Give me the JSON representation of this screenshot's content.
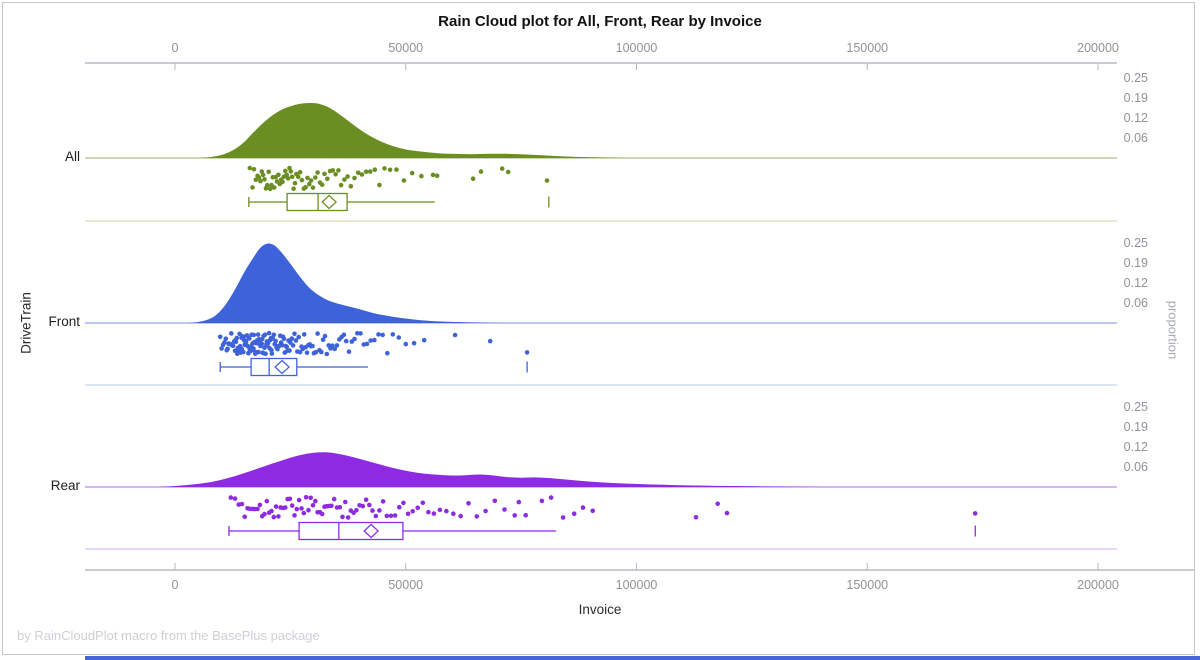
{
  "title": "Rain Cloud plot for All, Front, Rear by Invoice",
  "footer": "by RainCloudPlot macro from the BasePlus package",
  "chart_data": {
    "type": "raincloud",
    "title": "Rain Cloud plot for All, Front, Rear by Invoice",
    "xlabel": "Invoice",
    "ylabel": "DriveTrain",
    "ylabel_right": "proportion",
    "x_axis_range": [
      0,
      200000
    ],
    "x_ticks": [
      0,
      50000,
      100000,
      150000,
      200000
    ],
    "x_tick_labels": [
      "0",
      "50000",
      "100000",
      "150000",
      "200000"
    ],
    "proportion_ticks": [
      0.0625,
      0.125,
      0.1875,
      0.25
    ],
    "proportion_tick_labels": [
      "0.06",
      "0.12",
      "0.19",
      "0.25"
    ],
    "legend": "none",
    "grid": "off",
    "groups": [
      {
        "label": "All",
        "color": "#6B8E23",
        "density": [
          [
            5000,
            0
          ],
          [
            7000,
            0.002
          ],
          [
            9000,
            0.006
          ],
          [
            11000,
            0.014
          ],
          [
            13000,
            0.028
          ],
          [
            15000,
            0.05
          ],
          [
            17000,
            0.08
          ],
          [
            19000,
            0.108
          ],
          [
            21000,
            0.132
          ],
          [
            23000,
            0.15
          ],
          [
            25000,
            0.162
          ],
          [
            27000,
            0.169
          ],
          [
            29000,
            0.172
          ],
          [
            31000,
            0.17
          ],
          [
            33000,
            0.16
          ],
          [
            35000,
            0.143
          ],
          [
            37000,
            0.122
          ],
          [
            39000,
            0.1
          ],
          [
            41000,
            0.08
          ],
          [
            43000,
            0.063
          ],
          [
            45000,
            0.049
          ],
          [
            47000,
            0.038
          ],
          [
            49000,
            0.03
          ],
          [
            51000,
            0.024
          ],
          [
            54000,
            0.019
          ],
          [
            57000,
            0.015
          ],
          [
            60000,
            0.013
          ],
          [
            64000,
            0.012
          ],
          [
            68000,
            0.013
          ],
          [
            72000,
            0.013
          ],
          [
            76000,
            0.011
          ],
          [
            80000,
            0.008
          ],
          [
            84000,
            0.005
          ],
          [
            88000,
            0.003
          ],
          [
            93000,
            0.0015
          ],
          [
            98000,
            0
          ]
        ],
        "box": {
          "whisker_low": 16000,
          "q1": 24300,
          "median": 31000,
          "mean": 33400,
          "q3": 37300,
          "whisker_high": 56300,
          "outliers": [
            81000
          ]
        },
        "points": [
          16200,
          16800,
          17100,
          17500,
          17900,
          18200,
          18500,
          18800,
          19100,
          19400,
          19700,
          20000,
          20300,
          20600,
          20900,
          21200,
          21500,
          21800,
          22100,
          22400,
          22700,
          23000,
          23300,
          23600,
          23900,
          24200,
          24500,
          24800,
          25100,
          25400,
          25700,
          26000,
          26300,
          26700,
          27100,
          27500,
          27900,
          28300,
          28700,
          29100,
          29500,
          29900,
          30400,
          30900,
          31400,
          31900,
          32400,
          33000,
          33600,
          34200,
          34800,
          35400,
          36000,
          36700,
          37400,
          38100,
          38900,
          39700,
          40500,
          41400,
          42300,
          43300,
          44300,
          45400,
          46600,
          48000,
          49600,
          51400,
          53400,
          55900,
          56800,
          64600,
          66300,
          70900,
          72200,
          80600
        ]
      },
      {
        "label": "Front",
        "color": "#3E62D9",
        "density": [
          [
            3000,
            0
          ],
          [
            5000,
            0.003
          ],
          [
            7000,
            0.01
          ],
          [
            9000,
            0.026
          ],
          [
            11000,
            0.058
          ],
          [
            13000,
            0.105
          ],
          [
            15000,
            0.158
          ],
          [
            17000,
            0.205
          ],
          [
            18500,
            0.235
          ],
          [
            20000,
            0.248
          ],
          [
            21500,
            0.243
          ],
          [
            23000,
            0.222
          ],
          [
            25000,
            0.185
          ],
          [
            27000,
            0.146
          ],
          [
            29000,
            0.112
          ],
          [
            31000,
            0.088
          ],
          [
            33000,
            0.072
          ],
          [
            35000,
            0.062
          ],
          [
            37000,
            0.054
          ],
          [
            39000,
            0.047
          ],
          [
            41000,
            0.039
          ],
          [
            43000,
            0.031
          ],
          [
            45000,
            0.025
          ],
          [
            47000,
            0.02
          ],
          [
            50000,
            0.014
          ],
          [
            53000,
            0.009
          ],
          [
            56000,
            0.006
          ],
          [
            60000,
            0.0035
          ],
          [
            64000,
            0.002
          ],
          [
            68000,
            0.001
          ],
          [
            72000,
            0
          ]
        ],
        "box": {
          "whisker_low": 9800,
          "q1": 16500,
          "median": 20400,
          "mean": 23200,
          "q3": 26400,
          "whisker_high": 41800,
          "outliers": [
            76300
          ]
        },
        "points": [
          9800,
          10100,
          10400,
          10700,
          11000,
          11200,
          11400,
          11600,
          11800,
          12000,
          12200,
          12400,
          12600,
          12800,
          13000,
          13100,
          13200,
          13400,
          13500,
          13600,
          13800,
          13900,
          14000,
          14100,
          14200,
          14400,
          14500,
          14600,
          14800,
          14900,
          15000,
          15100,
          15200,
          15400,
          15500,
          15600,
          15800,
          15900,
          16000,
          16100,
          16200,
          16400,
          16500,
          16600,
          16800,
          16900,
          17000,
          17100,
          17200,
          17400,
          17500,
          17600,
          17800,
          17900,
          18000,
          18100,
          18200,
          18400,
          18500,
          18600,
          18800,
          18900,
          19000,
          19100,
          19200,
          19400,
          19500,
          19600,
          19800,
          19900,
          20000,
          20100,
          20200,
          20400,
          20500,
          20600,
          20800,
          20900,
          21000,
          21200,
          21400,
          21600,
          21800,
          22000,
          22200,
          22400,
          22600,
          22800,
          23000,
          23200,
          23400,
          23600,
          23800,
          24000,
          24200,
          24400,
          24600,
          24800,
          25000,
          25300,
          25600,
          25900,
          26200,
          26500,
          26800,
          27100,
          27400,
          27700,
          28000,
          28300,
          28600,
          28900,
          29200,
          29500,
          29800,
          30100,
          30500,
          30900,
          31300,
          31700,
          32100,
          32500,
          32900,
          33300,
          33700,
          34100,
          34600,
          35100,
          35600,
          36100,
          36600,
          37100,
          37700,
          38300,
          38900,
          39500,
          40200,
          40900,
          41600,
          42400,
          43200,
          44100,
          45000,
          46000,
          47200,
          48500,
          50000,
          51800,
          54000,
          60700,
          68300,
          76300
        ]
      },
      {
        "label": "Rear",
        "color": "#8E2BE2",
        "density": [
          [
            -4000,
            0
          ],
          [
            0,
            0.003
          ],
          [
            4000,
            0.008
          ],
          [
            8000,
            0.016
          ],
          [
            12000,
            0.03
          ],
          [
            16000,
            0.048
          ],
          [
            20000,
            0.068
          ],
          [
            24000,
            0.087
          ],
          [
            27000,
            0.099
          ],
          [
            30000,
            0.107
          ],
          [
            33000,
            0.108
          ],
          [
            36000,
            0.102
          ],
          [
            39000,
            0.092
          ],
          [
            42000,
            0.08
          ],
          [
            45000,
            0.068
          ],
          [
            48000,
            0.057
          ],
          [
            51000,
            0.048
          ],
          [
            54000,
            0.042
          ],
          [
            57000,
            0.038
          ],
          [
            60000,
            0.036
          ],
          [
            63000,
            0.037
          ],
          [
            66000,
            0.039
          ],
          [
            69000,
            0.036
          ],
          [
            72000,
            0.031
          ],
          [
            75000,
            0.029
          ],
          [
            78000,
            0.03
          ],
          [
            81000,
            0.028
          ],
          [
            84000,
            0.024
          ],
          [
            88000,
            0.019
          ],
          [
            92000,
            0.015
          ],
          [
            96000,
            0.012
          ],
          [
            101000,
            0.009
          ],
          [
            106000,
            0.007
          ],
          [
            111000,
            0.005
          ],
          [
            116000,
            0.004
          ],
          [
            122000,
            0.003
          ],
          [
            128000,
            0.002
          ],
          [
            135000,
            0.001
          ],
          [
            143000,
            0
          ]
        ],
        "box": {
          "whisker_low": 11700,
          "q1": 26900,
          "median": 35500,
          "mean": 42500,
          "q3": 49400,
          "whisker_high": 82600,
          "outliers": [
            173400
          ]
        },
        "points": [
          12100,
          13000,
          13800,
          14500,
          15100,
          15700,
          16200,
          16800,
          17300,
          17900,
          18400,
          18900,
          19400,
          19900,
          20400,
          20900,
          21400,
          21900,
          22400,
          22900,
          23400,
          23900,
          24400,
          24900,
          25400,
          25900,
          26400,
          26900,
          27400,
          27900,
          28400,
          28900,
          29400,
          29900,
          30400,
          30900,
          31400,
          31900,
          32400,
          32900,
          33400,
          33900,
          34500,
          35100,
          35700,
          36300,
          36900,
          37500,
          38100,
          38700,
          39300,
          40000,
          40700,
          41400,
          42100,
          42800,
          43500,
          44300,
          45100,
          45900,
          46800,
          47700,
          48600,
          49500,
          50500,
          51500,
          52600,
          53700,
          54900,
          56100,
          57400,
          58800,
          60300,
          61900,
          63600,
          65400,
          67300,
          69300,
          71400,
          73600,
          74500,
          76000,
          79500,
          81500,
          84100,
          86500,
          88400,
          90500,
          112900,
          117600,
          119600,
          173400
        ]
      }
    ]
  }
}
